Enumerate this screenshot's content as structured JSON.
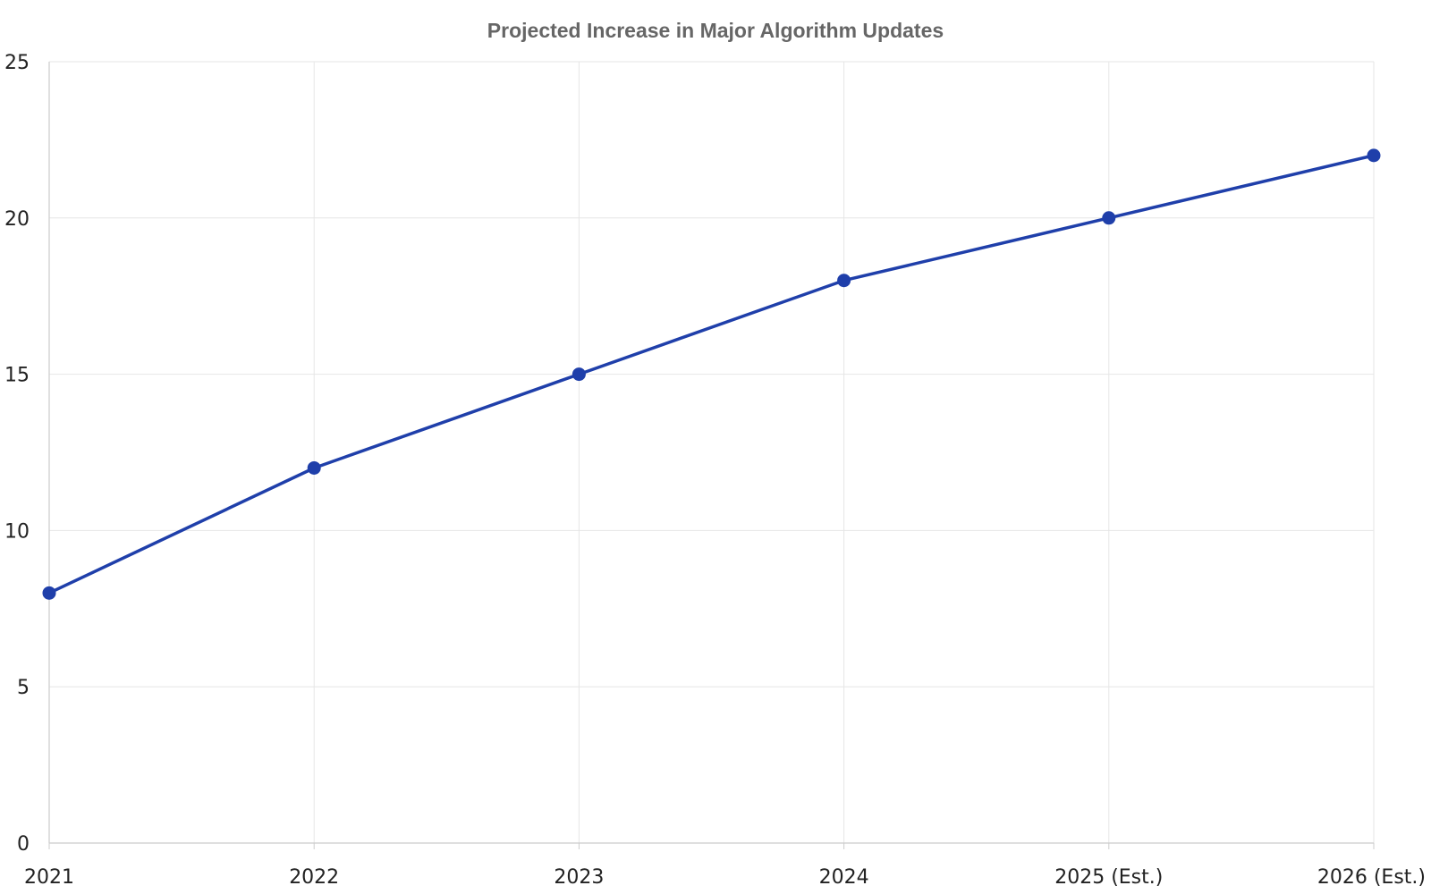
{
  "chart_data": {
    "type": "line",
    "title": "Projected Increase in Major Algorithm Updates",
    "xlabel": "",
    "ylabel": "",
    "categories": [
      "2021",
      "2022",
      "2023",
      "2024",
      "2025 (Est.)",
      "2026 (Est.)"
    ],
    "series": [
      {
        "values": [
          8,
          12,
          15,
          18,
          20,
          22
        ]
      }
    ],
    "ylim": [
      0,
      25
    ],
    "yticks": [
      0,
      5,
      10,
      15,
      20,
      25
    ],
    "grid": true,
    "legend": "none"
  },
  "colors": {
    "line": "#1f3faa",
    "marker": "#1f3faa",
    "grid": "#e6e6e6",
    "axis": "#cccccc",
    "title": "#666666",
    "tick_text": "#222222"
  }
}
